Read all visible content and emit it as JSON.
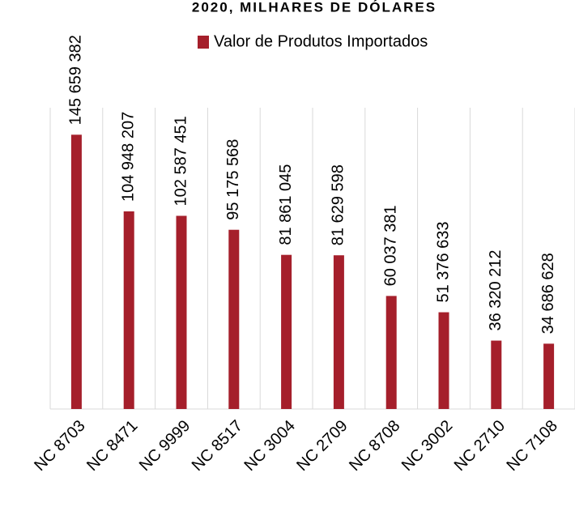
{
  "chart_data": {
    "type": "bar",
    "title": "2020, MILHARES DE DÓLARES",
    "categories": [
      "NC 8703",
      "NC 8471",
      "NC 9999",
      "NC 8517",
      "NC 3004",
      "NC 2709",
      "NC 8708",
      "NC 3002",
      "NC 2710",
      "NC 7108"
    ],
    "series": [
      {
        "name": "Valor de Produtos Importados",
        "color": "#a51f2b",
        "values": [
          145659382,
          104948207,
          102587451,
          95175568,
          81861045,
          81629598,
          60037381,
          51376633,
          36320212,
          34686628
        ],
        "value_labels": [
          "145 659 382",
          "104 948 207",
          "102 587 451",
          "95 175 568",
          "81 861 045",
          "81 629 598",
          "60 037 381",
          "51 376 633",
          "36 320 212",
          "34 686 628"
        ]
      }
    ],
    "ylim": [
      0,
      160000000
    ]
  }
}
